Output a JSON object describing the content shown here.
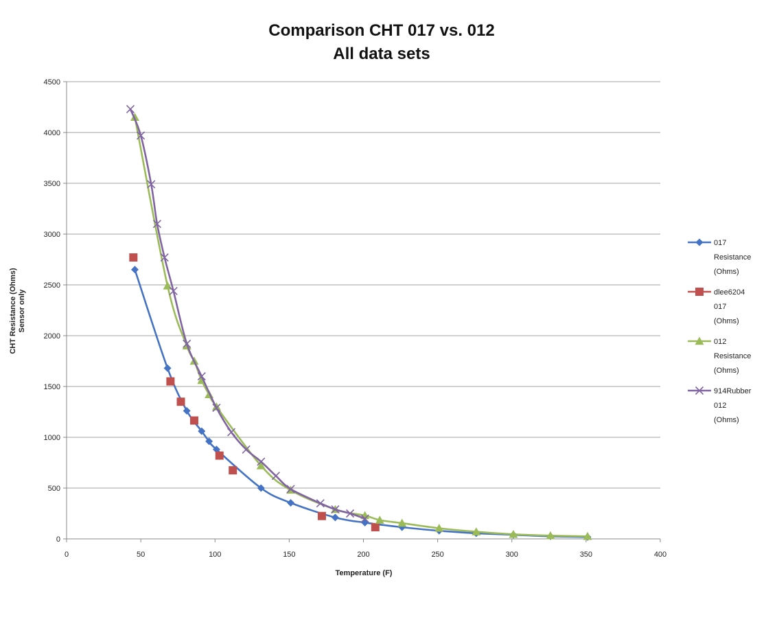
{
  "chart_data": {
    "type": "scatter",
    "title": "Comparison CHT 017 vs. 012",
    "subtitle": "All data sets",
    "xlabel": "Temperature (F)",
    "ylabel": [
      "CHT Resistance (Ohms)",
      "Sensor only"
    ],
    "xlim": [
      0,
      400
    ],
    "ylim": [
      0,
      4500
    ],
    "xticks": [
      "0",
      "50",
      "100",
      "150",
      "200",
      "250",
      "300",
      "350",
      "400"
    ],
    "yticks": [
      "0",
      "500",
      "1000",
      "1500",
      "2000",
      "2500",
      "3000",
      "3500",
      "4000",
      "4500"
    ],
    "grid": "horizontal",
    "legend_position": "right",
    "series": [
      {
        "name": [
          "017",
          "Resistance",
          "(Ohms)"
        ],
        "color": "#4472C4",
        "marker": "diamond",
        "line": true,
        "points": [
          [
            46,
            2650
          ],
          [
            68,
            1680
          ],
          [
            81,
            1260
          ],
          [
            91,
            1060
          ],
          [
            96,
            960
          ],
          [
            101,
            880
          ],
          [
            131,
            500
          ],
          [
            151,
            355
          ],
          [
            181,
            210
          ],
          [
            201,
            160
          ],
          [
            226,
            115
          ],
          [
            251,
            80
          ],
          [
            276,
            55
          ],
          [
            301,
            40
          ],
          [
            326,
            25
          ],
          [
            351,
            18
          ]
        ]
      },
      {
        "name": [
          "dlee6204",
          "017",
          "(Ohms)"
        ],
        "color": "#C0504D",
        "marker": "square",
        "line": false,
        "points": [
          [
            45,
            2770
          ],
          [
            70,
            1550
          ],
          [
            77,
            1350
          ],
          [
            86,
            1165
          ],
          [
            103,
            820
          ],
          [
            112,
            675
          ],
          [
            172,
            225
          ],
          [
            208,
            115
          ]
        ]
      },
      {
        "name": [
          "012",
          "Resistance",
          "(Ohms)"
        ],
        "color": "#9BBB59",
        "marker": "triangle",
        "line": true,
        "points": [
          [
            46,
            4150
          ],
          [
            68,
            2490
          ],
          [
            81,
            1900
          ],
          [
            86,
            1750
          ],
          [
            91,
            1560
          ],
          [
            96,
            1420
          ],
          [
            101,
            1300
          ],
          [
            131,
            720
          ],
          [
            151,
            480
          ],
          [
            181,
            290
          ],
          [
            201,
            230
          ],
          [
            211,
            185
          ],
          [
            226,
            155
          ],
          [
            251,
            105
          ],
          [
            276,
            70
          ],
          [
            301,
            45
          ],
          [
            326,
            32
          ],
          [
            351,
            25
          ]
        ]
      },
      {
        "name": [
          "914Rubber",
          "012",
          "(Ohms)"
        ],
        "color": "#8064A2",
        "marker": "x",
        "line": true,
        "points": [
          [
            43,
            4230
          ],
          [
            50,
            3970
          ],
          [
            57,
            3490
          ],
          [
            61,
            3100
          ],
          [
            66,
            2770
          ],
          [
            72,
            2440
          ],
          [
            81,
            1920
          ],
          [
            91,
            1600
          ],
          [
            101,
            1290
          ],
          [
            111,
            1050
          ],
          [
            121,
            880
          ],
          [
            131,
            760
          ],
          [
            141,
            620
          ],
          [
            151,
            490
          ],
          [
            171,
            350
          ],
          [
            181,
            290
          ],
          [
            191,
            250
          ],
          [
            201,
            200
          ]
        ]
      }
    ]
  }
}
